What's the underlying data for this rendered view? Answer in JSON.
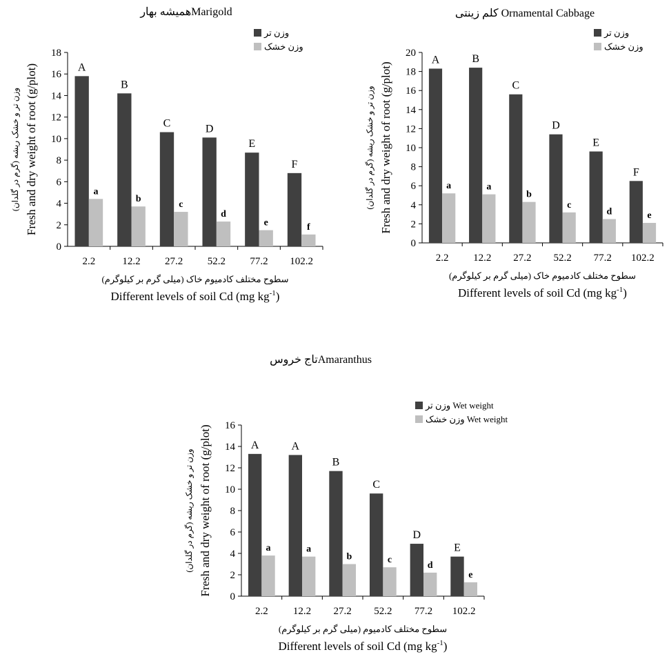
{
  "chart_data": [
    {
      "type": "bar",
      "title": "همیشه بهارMarigold",
      "ylabel_fa": "وزن تر و خشک ریشه (گرم در گلدان)",
      "ylabel_en": "Fresh and dry weight of root (g/plot)",
      "xlabel_fa": "سطوح مختلف کادمیوم خاک (میلی گرم بر کیلوگرم)",
      "xlabel_en": "Different levels of soil Cd (mg kg",
      "xlabel_sup": "-1",
      "xlabel_end": ")",
      "ylim": [
        0,
        18
      ],
      "yticks": [
        0,
        2,
        4,
        6,
        8,
        10,
        12,
        14,
        16,
        18
      ],
      "categories": [
        "2.2",
        "12.2",
        "27.2",
        "52.2",
        "77.2",
        "102.2"
      ],
      "series": [
        {
          "name": "وزن تر",
          "color": "#404040",
          "values": [
            15.8,
            14.2,
            10.6,
            10.1,
            8.7,
            6.8
          ],
          "labels": [
            "A",
            "B",
            "C",
            "D",
            "E",
            "F"
          ]
        },
        {
          "name": "وزن خشک",
          "color": "#bfbfbf",
          "values": [
            4.4,
            3.7,
            3.2,
            2.3,
            1.5,
            1.1
          ],
          "labels": [
            "a",
            "b",
            "c",
            "d",
            "e",
            "f"
          ]
        }
      ],
      "legend": "top-right"
    },
    {
      "type": "bar",
      "title": "کلم زینتی Ornamental Cabbage",
      "ylabel_fa": "وزن تر و خشک ریشه (گرم در گلدان)",
      "ylabel_en": "Fresh and dry weight of root (g/plot)",
      "xlabel_fa": "سطوح مختلف کادمیوم خاک (میلی گرم بر کیلوگرم)",
      "xlabel_en": "Different levels of soil Cd (mg kg",
      "xlabel_sup": "-1",
      "xlabel_end": ")",
      "ylim": [
        0,
        20
      ],
      "yticks": [
        0,
        2,
        4,
        6,
        8,
        10,
        12,
        14,
        16,
        18,
        20
      ],
      "categories": [
        "2.2",
        "12.2",
        "27.2",
        "52.2",
        "77.2",
        "102.2"
      ],
      "series": [
        {
          "name": "وزن تر",
          "color": "#404040",
          "values": [
            18.3,
            18.4,
            15.6,
            11.4,
            9.6,
            6.5
          ],
          "labels": [
            "A",
            "B",
            "C",
            "D",
            "E",
            "F"
          ]
        },
        {
          "name": "وزن خشک",
          "color": "#bfbfbf",
          "values": [
            5.2,
            5.1,
            4.3,
            3.2,
            2.5,
            2.1
          ],
          "labels": [
            "a",
            "a",
            "b",
            "c",
            "d",
            "e"
          ]
        }
      ],
      "legend": "top-right"
    },
    {
      "type": "bar",
      "title": "تاج خروسAmaranthus",
      "ylabel_fa": "وزن تر و خشک ریشه (گرم در گلدان)",
      "ylabel_en": "Fresh and dry weight of root (g/plot)",
      "xlabel_fa": "سطوح مختلف کادمیوم (میلی گرم بر کیلوگرم)",
      "xlabel_en": "Different levels of soil Cd (mg kg",
      "xlabel_sup": "-1",
      "xlabel_end": ")",
      "ylim": [
        0,
        16
      ],
      "yticks": [
        0,
        2,
        4,
        6,
        8,
        10,
        12,
        14,
        16
      ],
      "categories": [
        "2.2",
        "12.2",
        "27.2",
        "52.2",
        "77.2",
        "102.2"
      ],
      "series": [
        {
          "name": "وزن تر Wet weight",
          "color": "#404040",
          "values": [
            13.3,
            13.2,
            11.7,
            9.6,
            4.9,
            3.7
          ],
          "labels": [
            "A",
            "A",
            "B",
            "C",
            "D",
            "E"
          ]
        },
        {
          "name": "وزن خشک Wet weight",
          "color": "#bfbfbf",
          "values": [
            3.8,
            3.7,
            3.0,
            2.7,
            2.2,
            1.3
          ],
          "labels": [
            "a",
            "a",
            "b",
            "c",
            "d",
            "e"
          ]
        }
      ],
      "legend": "top-right"
    }
  ]
}
